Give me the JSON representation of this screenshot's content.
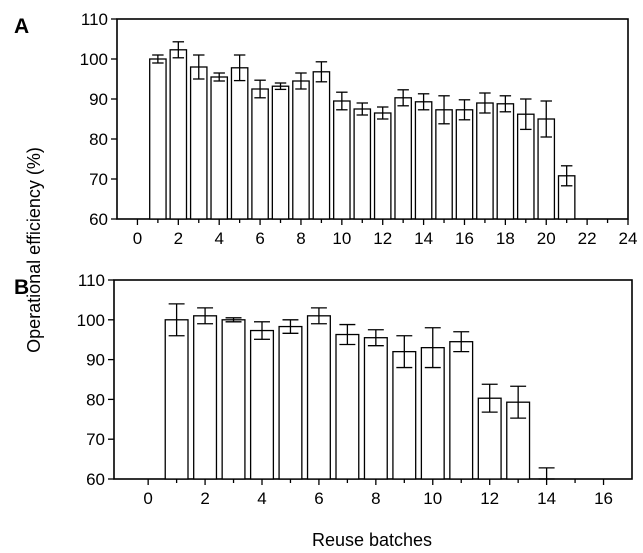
{
  "figure": {
    "xlabel": "Reuse batches",
    "ylabel": "Operational efficiency (%)"
  },
  "chart_data": [
    {
      "type": "bar",
      "panel": "A",
      "x": [
        1,
        2,
        3,
        4,
        5,
        6,
        7,
        8,
        9,
        10,
        11,
        12,
        13,
        14,
        15,
        16,
        17,
        18,
        19,
        20,
        21
      ],
      "values": [
        100,
        102.3,
        98,
        95.5,
        97.8,
        92.5,
        93.2,
        94.5,
        96.8,
        89.5,
        87.5,
        86.5,
        90.3,
        89.3,
        87.3,
        87.3,
        89,
        88.8,
        86.2,
        85,
        70.8
      ],
      "errors": [
        1,
        2,
        3,
        1,
        3.2,
        2.2,
        0.8,
        2,
        2.5,
        2.2,
        1.5,
        1.5,
        2,
        2,
        3.5,
        2.5,
        2.5,
        2,
        3.8,
        4.5,
        2.5
      ],
      "xticks": [
        0,
        2,
        4,
        6,
        8,
        10,
        12,
        14,
        16,
        18,
        20,
        22,
        24
      ],
      "yticks": [
        60,
        70,
        80,
        90,
        100,
        110
      ],
      "xlim": [
        -1,
        24
      ],
      "ylim": [
        60,
        110
      ],
      "xlabel": "Reuse batches",
      "ylabel": "Operational efficiency (%)",
      "grid": false
    },
    {
      "type": "bar",
      "panel": "B",
      "x": [
        1,
        2,
        3,
        4,
        5,
        6,
        7,
        8,
        9,
        10,
        11,
        12,
        13,
        14
      ],
      "values": [
        100,
        101,
        100,
        97.3,
        98.3,
        101,
        96.3,
        95.5,
        92,
        93,
        94.5,
        80.3,
        79.3,
        60
      ],
      "errors": [
        4,
        2,
        0.5,
        2.2,
        1.7,
        2,
        2.5,
        2,
        4,
        5,
        2.5,
        3.5,
        4,
        2.8
      ],
      "xticks": [
        0,
        2,
        4,
        6,
        8,
        10,
        12,
        14,
        16
      ],
      "yticks": [
        60,
        70,
        80,
        90,
        100,
        110
      ],
      "xlim": [
        -1.2,
        17
      ],
      "ylim": [
        60,
        110
      ],
      "xlabel": "Reuse batches",
      "ylabel": "Operational efficiency (%)",
      "grid": false
    }
  ]
}
